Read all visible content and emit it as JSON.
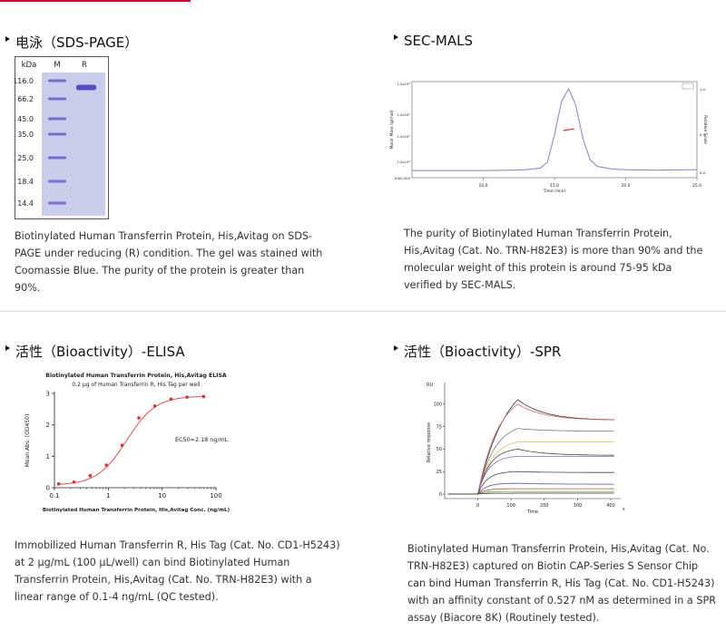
{
  "sections": {
    "sds_page": {
      "title": "电泳（SDS-PAGE）",
      "gel": {
        "unit": "kDa",
        "lane_m": "M",
        "lane_r": "R",
        "markers": [
          "116.0",
          "66.2",
          "45.0",
          "35.0",
          "25.0",
          "18.4",
          "14.4"
        ]
      },
      "text": "Biotinylated Human Transferrin Protein, His,Avitag on SDS-PAGE under reducing (R) condition. The gel was stained with Coomassie Blue. The purity of the protein is greater than 90%."
    },
    "sec_mals": {
      "title": "SEC-MALS",
      "text": "The purity of Biotinylated Human Transferrin Protein, His,Avitag (Cat. No. TRN-H82E3) is more than 90% and the molecular weight of this protein is around 75-95 kDa verified by SEC-MALS.",
      "chart_data": {
        "type": "line",
        "title": "",
        "xlabel": "Time (min)",
        "ylabel": "Molar Mass (g/mol)",
        "y2label": "Relative Scale",
        "xticks": [
          "10.0",
          "15.0",
          "20.0",
          "25.0"
        ],
        "yticks": [
          "1.0x10⁸",
          "1.0x10⁶",
          "1.0x10⁵",
          "1.0x10⁴",
          "1000.000"
        ],
        "y2ticks": [
          "1.0",
          "0.5",
          "0.0"
        ],
        "xlim": [
          5,
          25
        ],
        "peak_time": 16.0,
        "x": [
          5,
          10,
          12,
          13,
          14,
          14.5,
          15,
          15.5,
          16,
          16.5,
          17,
          17.5,
          18,
          19,
          20,
          22,
          25
        ],
        "values": [
          0.02,
          0.02,
          0.025,
          0.03,
          0.05,
          0.12,
          0.45,
          0.85,
          1.0,
          0.8,
          0.4,
          0.15,
          0.07,
          0.04,
          0.03,
          0.025,
          0.03
        ]
      }
    },
    "elisa": {
      "title": "活性（Bioactivity）-ELISA",
      "text": "Immobilized Human Transferrin R, His Tag (Cat. No. CD1-H5243) at 2 μg/mL (100 μL/well) can bind Biotinylated Human Transferrin Protein, His,Avitag (Cat. No. TRN-H82E3) with a linear range of 0.1-4 ng/mL (QC tested).",
      "chart_data": {
        "type": "scatter",
        "title": "Biotinylated Human Transferrin Protein, His,Avitag ELISA",
        "subtitle": "0.2 μg of Human Transferrin R, His Tag per well",
        "xlabel": "Biotinylated Human Transferrin Protein, His,Avitag Conc. (ng/mL)",
        "ylabel": "Mean Abs. (OD450)",
        "annotation": "EC50=2.18 ng/mL",
        "xscale": "log",
        "xlim": [
          0.1,
          100
        ],
        "ylim": [
          0,
          3
        ],
        "xticks": [
          "0.1",
          "1",
          "10",
          "100"
        ],
        "yticks": [
          "0",
          "1",
          "2",
          "3"
        ],
        "x": [
          0.12,
          0.23,
          0.46,
          0.92,
          1.8,
          3.7,
          7.3,
          14.6,
          29,
          59
        ],
        "values": [
          0.12,
          0.18,
          0.38,
          0.72,
          1.35,
          2.22,
          2.6,
          2.82,
          2.88,
          2.9
        ]
      }
    },
    "spr": {
      "title": "活性（Bioactivity）-SPR",
      "text": "Biotinylated Human Transferrin Protein, His,Avitag (Cat. No. TRN-H82E3) captured on Biotin CAP-Series S Sensor Chip can bind Human Transferrin R, His Tag (Cat. No. CD1-H5243) with an affinity constant of 0.527 nM as determined in a SPR assay (Biacore 8K) (Routinely tested).",
      "chart_data": {
        "type": "line",
        "title": "",
        "xlabel": "Time",
        "ylabel": "Relative response",
        "yunit": "RU",
        "xunit": "s",
        "xlim": [
          -100,
          430
        ],
        "ylim": [
          -5,
          120
        ],
        "xticks": [
          "0",
          "100",
          "200",
          "300",
          "400"
        ],
        "yticks": [
          "0",
          "25",
          "50",
          "75",
          "100"
        ],
        "association_end": 120,
        "series": [
          {
            "color": "#333333",
            "plateau": 105,
            "end": 82
          },
          {
            "color": "#e06060",
            "plateau": 100,
            "end": 82
          },
          {
            "color": "#777777",
            "plateau": 73,
            "end": 70
          },
          {
            "color": "#d4c85a",
            "plateau": 58,
            "end": 58
          },
          {
            "color": "#444444",
            "plateau": 50,
            "end": 43
          },
          {
            "color": "#8a6bbd",
            "plateau": 42,
            "end": 42
          },
          {
            "color": "#444444",
            "plateau": 25,
            "end": 24
          },
          {
            "color": "#6a4a9a",
            "plateau": 12,
            "end": 11
          },
          {
            "color": "#9a5a3a",
            "plateau": 6,
            "end": 6
          },
          {
            "color": "#7aa04a",
            "plateau": 3,
            "end": 3
          },
          {
            "color": "#333333",
            "plateau": 1,
            "end": 1
          }
        ]
      }
    }
  }
}
